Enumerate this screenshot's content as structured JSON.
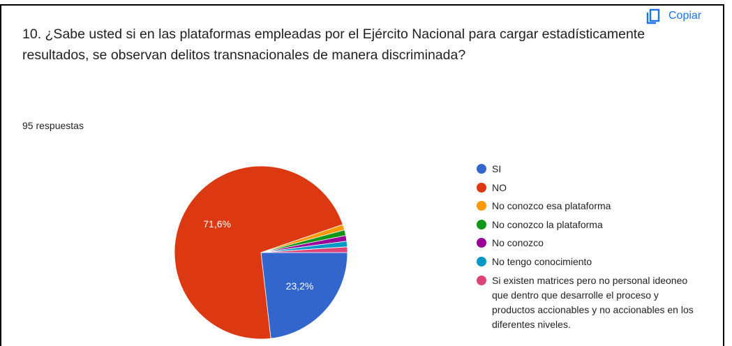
{
  "chart_data": {
    "type": "pie",
    "title": "10. ¿Sabe usted si en las plataformas empleadas por el Ejército Nacional para cargar estadísticamente resultados, se observan delitos transnacionales de manera discriminada?",
    "subtitle": "95 respuestas",
    "copy_label": "Copiar",
    "categories": [
      "SI",
      "NO",
      "No conozco esa plataforma",
      "No conozco la plataforma",
      "No conozco",
      "No tengo conocimiento",
      "Si existen matrices pero no personal ideoneo que dentro que desarrolle el proceso y productos accionables y no accionables en los diferentes niveles."
    ],
    "values": [
      23.2,
      71.6,
      1.05,
      1.05,
      1.05,
      1.05,
      1.05
    ],
    "value_labels": [
      "23,2%",
      "71,6%",
      null,
      null,
      null,
      null,
      null
    ],
    "colors": [
      "#3366cc",
      "#dc3912",
      "#ff9900",
      "#109618",
      "#990099",
      "#0099c6",
      "#dd4477"
    ],
    "legend": "right"
  }
}
